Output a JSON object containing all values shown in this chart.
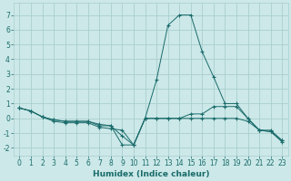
{
  "xlabel": "Humidex (Indice chaleur)",
  "xlim": [
    -0.5,
    23.5
  ],
  "ylim": [
    -2.5,
    7.8
  ],
  "bg_color": "#cce8e8",
  "grid_color": "#aacece",
  "line_color": "#1a6b6b",
  "line1_x": [
    0,
    1,
    2,
    3,
    4,
    5,
    6,
    7,
    8,
    9,
    10,
    11,
    12,
    13,
    14,
    15,
    16,
    17,
    18,
    19,
    20,
    21,
    22,
    23
  ],
  "line1_y": [
    0.7,
    0.5,
    0.1,
    -0.1,
    -0.2,
    -0.2,
    -0.2,
    -0.4,
    -0.5,
    -1.8,
    -1.8,
    0.0,
    0.0,
    0.0,
    0.0,
    0.3,
    0.3,
    0.8,
    0.8,
    0.8,
    0.0,
    -0.8,
    -0.8,
    -1.5
  ],
  "line2_x": [
    0,
    1,
    2,
    3,
    4,
    5,
    6,
    7,
    8,
    9,
    10,
    11,
    12,
    13,
    14,
    15,
    16,
    17,
    18,
    19,
    20,
    21,
    22,
    23
  ],
  "line2_y": [
    0.7,
    0.5,
    0.1,
    -0.1,
    -0.2,
    -0.2,
    -0.2,
    -0.5,
    -0.5,
    -1.2,
    -1.8,
    0.0,
    2.6,
    6.3,
    7.0,
    7.0,
    4.5,
    2.8,
    1.0,
    1.0,
    0.0,
    -0.8,
    -0.9,
    -1.5
  ],
  "line3_x": [
    0,
    1,
    2,
    3,
    4,
    5,
    6,
    7,
    8,
    9,
    10,
    11,
    12,
    13,
    14,
    15,
    16,
    17,
    18,
    19,
    20,
    21,
    22,
    23
  ],
  "line3_y": [
    0.7,
    0.5,
    0.1,
    -0.2,
    -0.3,
    -0.3,
    -0.3,
    -0.6,
    -0.7,
    -0.8,
    -1.8,
    0.0,
    0.0,
    0.0,
    0.0,
    0.0,
    0.0,
    0.0,
    0.0,
    0.0,
    -0.2,
    -0.8,
    -0.9,
    -1.6
  ],
  "xticks": [
    0,
    1,
    2,
    3,
    4,
    5,
    6,
    7,
    8,
    9,
    10,
    11,
    12,
    13,
    14,
    15,
    16,
    17,
    18,
    19,
    20,
    21,
    22,
    23
  ],
  "yticks": [
    -2,
    -1,
    0,
    1,
    2,
    3,
    4,
    5,
    6,
    7
  ],
  "xlabel_fontsize": 6.5,
  "tick_fontsize": 5.5
}
